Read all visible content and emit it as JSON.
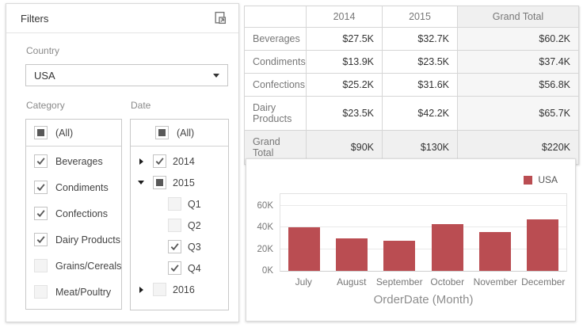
{
  "filters_panel": {
    "title": "Filters",
    "country": {
      "label": "Country",
      "value": "USA"
    },
    "category": {
      "label": "Category",
      "all_item": {
        "label": "(All)",
        "state": "indeterminate"
      },
      "items": [
        {
          "label": "Beverages",
          "state": "checked"
        },
        {
          "label": "Condiments",
          "state": "checked"
        },
        {
          "label": "Confections",
          "state": "checked"
        },
        {
          "label": "Dairy Products",
          "state": "checked"
        },
        {
          "label": "Grains/Cereals",
          "state": "unchecked"
        },
        {
          "label": "Meat/Poultry",
          "state": "unchecked"
        }
      ]
    },
    "date": {
      "label": "Date",
      "all_item": {
        "label": "(All)",
        "state": "indeterminate"
      },
      "items": [
        {
          "label": "2014",
          "state": "checked",
          "expander": "collapsed",
          "level": 0
        },
        {
          "label": "2015",
          "state": "indeterminate",
          "expander": "expanded",
          "level": 0
        },
        {
          "label": "Q1",
          "state": "unchecked",
          "expander": null,
          "level": 1
        },
        {
          "label": "Q2",
          "state": "unchecked",
          "expander": null,
          "level": 1
        },
        {
          "label": "Q3",
          "state": "checked",
          "expander": null,
          "level": 1
        },
        {
          "label": "Q4",
          "state": "checked",
          "expander": null,
          "level": 1
        },
        {
          "label": "2016",
          "state": "unchecked",
          "expander": "collapsed",
          "level": 0
        }
      ]
    }
  },
  "pivot_table": {
    "columns": [
      "",
      "2014",
      "2015",
      "Grand Total"
    ],
    "rows": [
      {
        "header": "Beverages",
        "values": [
          "$27.5K",
          "$32.7K",
          "$60.2K"
        ],
        "is_total": false
      },
      {
        "header": "Condiments",
        "values": [
          "$13.9K",
          "$23.5K",
          "$37.4K"
        ],
        "is_total": false
      },
      {
        "header": "Confections",
        "values": [
          "$25.2K",
          "$31.6K",
          "$56.8K"
        ],
        "is_total": false
      },
      {
        "header": "Dairy Products",
        "values": [
          "$23.5K",
          "$42.2K",
          "$65.7K"
        ],
        "is_total": false
      },
      {
        "header": "Grand Total",
        "values": [
          "$90K",
          "$130K",
          "$220K"
        ],
        "is_total": true
      }
    ]
  },
  "chart_data": {
    "type": "bar",
    "title": "",
    "categories": [
      "July",
      "August",
      "September",
      "October",
      "November",
      "December"
    ],
    "series": [
      {
        "name": "USA",
        "color": "#ba4d52",
        "values": [
          40,
          30,
          28,
          43,
          36,
          47
        ]
      }
    ],
    "value_unit": "K",
    "xlabel": "OrderDate (Month)",
    "ylabel": "",
    "yticks": [
      0,
      20,
      40,
      60
    ],
    "ytick_labels": [
      "0K",
      "20K",
      "40K",
      "60K"
    ],
    "ylim": [
      0,
      72
    ],
    "grid": true,
    "legend_position": "top-right"
  },
  "colors": {
    "bar": "#ba4d52",
    "checkmark": "#595959",
    "panel_border": "#dadada"
  }
}
